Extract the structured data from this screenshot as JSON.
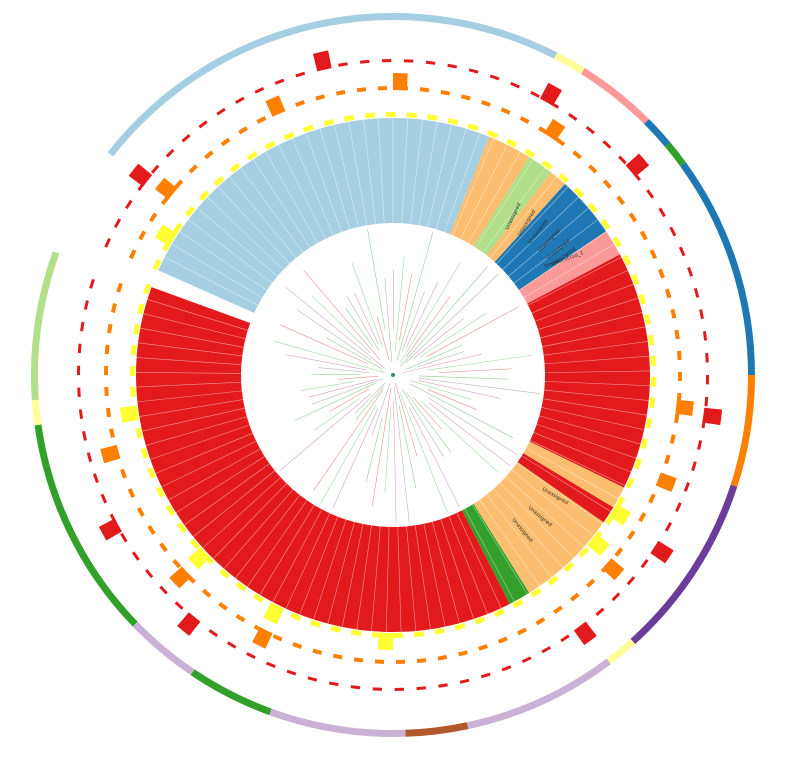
{
  "figure": {
    "type": "circular-phylogenetic-tree",
    "labels": [
      "Unassigned",
      "Unassigned",
      "Unassigned",
      "Unassigned",
      "Unassigned",
      "Unassigned",
      "Streptococcus_1",
      "Unassigned",
      "Unassigned",
      "Unassigned"
    ]
  },
  "legend_colors": {
    "light_blue": "#a6cee3",
    "dark_blue": "#1f78b4",
    "light_green": "#b2df8a",
    "dark_green": "#33a02c",
    "pink": "#fb9a99",
    "red": "#e31a1c",
    "light_orange": "#fdbf6f",
    "orange": "#ff7f00",
    "lavender": "#cab2d6",
    "purple": "#6a3d9a",
    "yellow": "#ffff99",
    "brown": "#b15928"
  }
}
